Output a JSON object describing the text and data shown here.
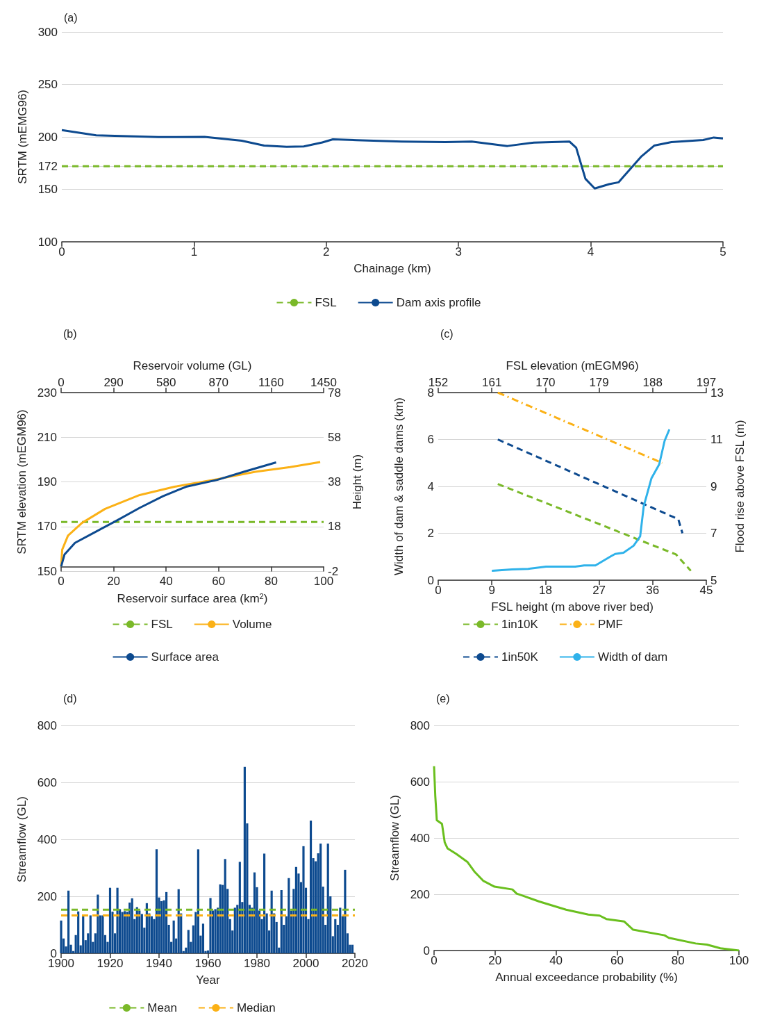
{
  "chart_data": [
    {
      "type": "line",
      "title": "(a)",
      "xlabel": "Chainage (km)",
      "ylabel": "SRTM (mEMG96)",
      "xlim": [
        0,
        5
      ],
      "xticks": [
        0,
        1,
        2,
        3,
        4,
        5
      ],
      "ylim": [
        100,
        300
      ],
      "yticks": [
        100,
        150,
        172,
        200,
        250,
        300
      ],
      "grid": "y",
      "legend": "bottom",
      "marker": "none",
      "series": [
        {
          "name": "FSL",
          "color": "#7ab929",
          "line_style": "dashed",
          "x": [
            0,
            5
          ],
          "values": [
            172,
            172
          ]
        },
        {
          "name": "Dam axis profile",
          "color": "#0d4a8f",
          "line_style": "solid",
          "x": [
            0,
            0.26,
            0.73,
            1.08,
            1.36,
            1.53,
            1.7,
            1.83,
            1.97,
            2.05,
            2.23,
            2.57,
            2.9,
            3.1,
            3.37,
            3.57,
            3.84,
            3.89,
            3.96,
            4.03,
            4.14,
            4.21,
            4.38,
            4.48,
            4.61,
            4.85,
            4.93,
            5
          ],
          "values": [
            206.5,
            201.5,
            199.8,
            200,
            196.4,
            191.7,
            190.5,
            190.9,
            194.7,
            197.7,
            196.9,
            195.5,
            195,
            195.6,
            191.3,
            194.6,
            195.5,
            189.7,
            160,
            150.8,
            155,
            156.7,
            181,
            191.7,
            195,
            197,
            199.4,
            198.5
          ]
        }
      ]
    },
    {
      "type": "line",
      "title": "(b)",
      "xlabel": "Reservoir surface area (km$^{2}$)",
      "x2label": "Reservoir volume (GL)",
      "ylabel": "SRTM elevation (mEGM96)",
      "y2label": "Height (m)",
      "xlim": [
        0,
        100
      ],
      "xticks": [
        0,
        20,
        40,
        60,
        80,
        100
      ],
      "x2lim": [
        0,
        1450
      ],
      "x2ticks": [
        0,
        290,
        580,
        870,
        1160,
        1450
      ],
      "ylim": [
        150,
        230
      ],
      "yticks": [
        150,
        170,
        190,
        210,
        230
      ],
      "y2lim": [
        -2,
        78
      ],
      "y2ticks": [
        -2,
        18,
        38,
        58,
        78
      ],
      "grid": "y",
      "legend": "bottom",
      "marker": "none",
      "series": [
        {
          "name": "FSL",
          "color": "#7ab929",
          "line_style": "dashed",
          "x": [
            0,
            100
          ],
          "values": [
            172,
            172
          ]
        },
        {
          "name": "Volume",
          "color": "#fbb116",
          "line_style": "solid",
          "axis": "x2",
          "x": [
            0,
            6,
            38,
            115,
            243,
            434,
            626,
            862,
            1073,
            1265,
            1431
          ],
          "values": [
            152,
            159.6,
            165.9,
            171.6,
            177.9,
            184.1,
            187.8,
            191.2,
            194.5,
            196.6,
            198.9
          ]
        },
        {
          "name": "Surface area",
          "color": "#0d4a8f",
          "line_style": "solid",
          "x": [
            0,
            1.3,
            5.3,
            12.3,
            21.1,
            30,
            38.8,
            47.6,
            59.5,
            69.6,
            81.9
          ],
          "values": [
            152,
            157.5,
            162.7,
            167.1,
            172.6,
            178.4,
            183.6,
            187.8,
            190.9,
            194.5,
            198.7
          ]
        }
      ]
    },
    {
      "type": "line",
      "title": "(c)",
      "xlabel": "FSL height (m above river bed)",
      "x2label": "FSL elevation (mEGM96)",
      "ylabel": "Width of dam & saddle dams (km)",
      "y2label": "Flood rise above FSL (m)",
      "xlim": [
        0,
        45
      ],
      "xticks": [
        0,
        9,
        18,
        27,
        36,
        45
      ],
      "x2lim": [
        152,
        197
      ],
      "x2ticks": [
        152,
        161,
        170,
        179,
        188,
        197
      ],
      "ylim": [
        0,
        8
      ],
      "yticks": [
        0,
        2,
        4,
        6,
        8
      ],
      "y2lim": [
        5,
        13
      ],
      "y2ticks": [
        5,
        7,
        9,
        11,
        13
      ],
      "grid": "y",
      "legend": "bottom",
      "marker": "none",
      "series": [
        {
          "name": "1in10K",
          "color": "#7ab929",
          "line_style": "dashed",
          "axis": "y2",
          "x": [
            10,
            39.9,
            42.4
          ],
          "values": [
            9.1,
            6.1,
            5.4
          ]
        },
        {
          "name": "PMF",
          "color": "#fbb116",
          "line_style": "dashdot",
          "axis": "y2",
          "x": [
            10,
            37.6
          ],
          "values": [
            13,
            10
          ]
        },
        {
          "name": "1in50K",
          "color": "#0d4a8f",
          "line_style": "dashed",
          "axis": "y2",
          "x": [
            10,
            40.3,
            41
          ],
          "values": [
            11,
            7.6,
            7
          ]
        },
        {
          "name": "Width of dam",
          "color": "#2fb2ea",
          "line_style": "solid",
          "x": [
            9,
            12.4,
            15.1,
            18.1,
            23,
            24.5,
            26.4,
            29,
            29.7,
            31.1,
            32.8,
            33.9,
            34.5,
            35.8,
            37.1,
            38,
            38.8
          ],
          "values": [
            0.4,
            0.46,
            0.48,
            0.58,
            0.58,
            0.63,
            0.63,
            1.02,
            1.12,
            1.17,
            1.47,
            1.87,
            3.16,
            4.35,
            4.94,
            5.94,
            6.43
          ]
        }
      ]
    },
    {
      "type": "bar",
      "title": "(d)",
      "xlabel": "Year",
      "ylabel": "Streamflow (GL)",
      "xlim": [
        1900,
        2020
      ],
      "xticks": [
        1900,
        1920,
        1940,
        1960,
        1980,
        2000,
        2020
      ],
      "ylim": [
        0,
        800
      ],
      "yticks": [
        0,
        200,
        400,
        600,
        800
      ],
      "grid": "y",
      "legend": "bottom",
      "marker": "none",
      "x": [
        1900,
        1901,
        1902,
        1903,
        1904,
        1905,
        1906,
        1907,
        1908,
        1909,
        1910,
        1911,
        1912,
        1913,
        1914,
        1915,
        1916,
        1917,
        1918,
        1919,
        1920,
        1921,
        1922,
        1923,
        1924,
        1925,
        1926,
        1927,
        1928,
        1929,
        1930,
        1931,
        1932,
        1933,
        1934,
        1935,
        1936,
        1937,
        1938,
        1939,
        1940,
        1941,
        1942,
        1943,
        1944,
        1945,
        1946,
        1947,
        1948,
        1949,
        1950,
        1951,
        1952,
        1953,
        1954,
        1955,
        1956,
        1957,
        1958,
        1959,
        1960,
        1961,
        1962,
        1963,
        1964,
        1965,
        1966,
        1967,
        1968,
        1969,
        1970,
        1971,
        1972,
        1973,
        1974,
        1975,
        1976,
        1977,
        1978,
        1979,
        1980,
        1981,
        1982,
        1983,
        1984,
        1985,
        1986,
        1987,
        1988,
        1989,
        1990,
        1991,
        1992,
        1993,
        1994,
        1995,
        1996,
        1997,
        1998,
        1999,
        2000,
        2001,
        2002,
        2003,
        2004,
        2005,
        2006,
        2007,
        2008,
        2009,
        2010,
        2011,
        2012,
        2013,
        2014,
        2015,
        2016,
        2017,
        2018,
        2019
      ],
      "series": [
        {
          "color": "#0d4a8f",
          "values": [
            115,
            52,
            24,
            220,
            30,
            8,
            64,
            147,
            28,
            133,
            46,
            70,
            133,
            40,
            70,
            206,
            133,
            133,
            64,
            40,
            230,
            146,
            70,
            230,
            155,
            145,
            148,
            146,
            178,
            193,
            120,
            162,
            150,
            138,
            90,
            176,
            140,
            130,
            120,
            365,
            196,
            183,
            186,
            215,
            100,
            40,
            115,
            52,
            225,
            140,
            8,
            20,
            82,
            40,
            98,
            145,
            365,
            62,
            104,
            8,
            10,
            194,
            150,
            155,
            160,
            242,
            240,
            331,
            226,
            120,
            80,
            160,
            170,
            321,
            180,
            654,
            456,
            170,
            160,
            284,
            232,
            150,
            120,
            350,
            140,
            80,
            220,
            140,
            110,
            20,
            222,
            100,
            130,
            264,
            150,
            226,
            303,
            280,
            250,
            376,
            230,
            120,
            466,
            334,
            323,
            351,
            385,
            234,
            100,
            385,
            200,
            60,
            120,
            100,
            160,
            130,
            293,
            70,
            30,
            30
          ]
        },
        {
          "name": "Mean",
          "type": "line",
          "color": "#7ab929",
          "line_style": "dashed",
          "x": [
            1900,
            2020
          ],
          "values": [
            153,
            153
          ]
        },
        {
          "name": "Median",
          "type": "line",
          "color": "#fbb116",
          "line_style": "dashed",
          "x": [
            1900,
            2020
          ],
          "values": [
            133,
            133
          ]
        }
      ]
    },
    {
      "type": "line",
      "title": "(e)",
      "xlabel": "Annual exceedance probability (%)",
      "ylabel": "Streamflow (GL)",
      "xlim": [
        0,
        100
      ],
      "xticks": [
        0,
        20,
        40,
        60,
        80,
        100
      ],
      "ylim": [
        0,
        800
      ],
      "yticks": [
        0,
        200,
        400,
        600,
        800
      ],
      "grid": "y",
      "marker": "none",
      "series": [
        {
          "color": "#6abf1e",
          "line_style": "solid",
          "x": [
            0,
            0.4,
            0.9,
            2.6,
            3.5,
            4.4,
            7.3,
            11,
            13.2,
            16.1,
            19.8,
            25.7,
            27.1,
            29.3,
            34.5,
            43.3,
            50.6,
            54.3,
            56.5,
            62.4,
            65.3,
            75.6,
            77,
            85.8,
            89.5,
            93.9,
            100
          ],
          "values": [
            655,
            549,
            463,
            450,
            384,
            363,
            343,
            314,
            281,
            248,
            227,
            217,
            202,
            194,
            174,
            145,
            128,
            124,
            112,
            103,
            74,
            54,
            45,
            25,
            21,
            8,
            0
          ]
        }
      ]
    }
  ]
}
